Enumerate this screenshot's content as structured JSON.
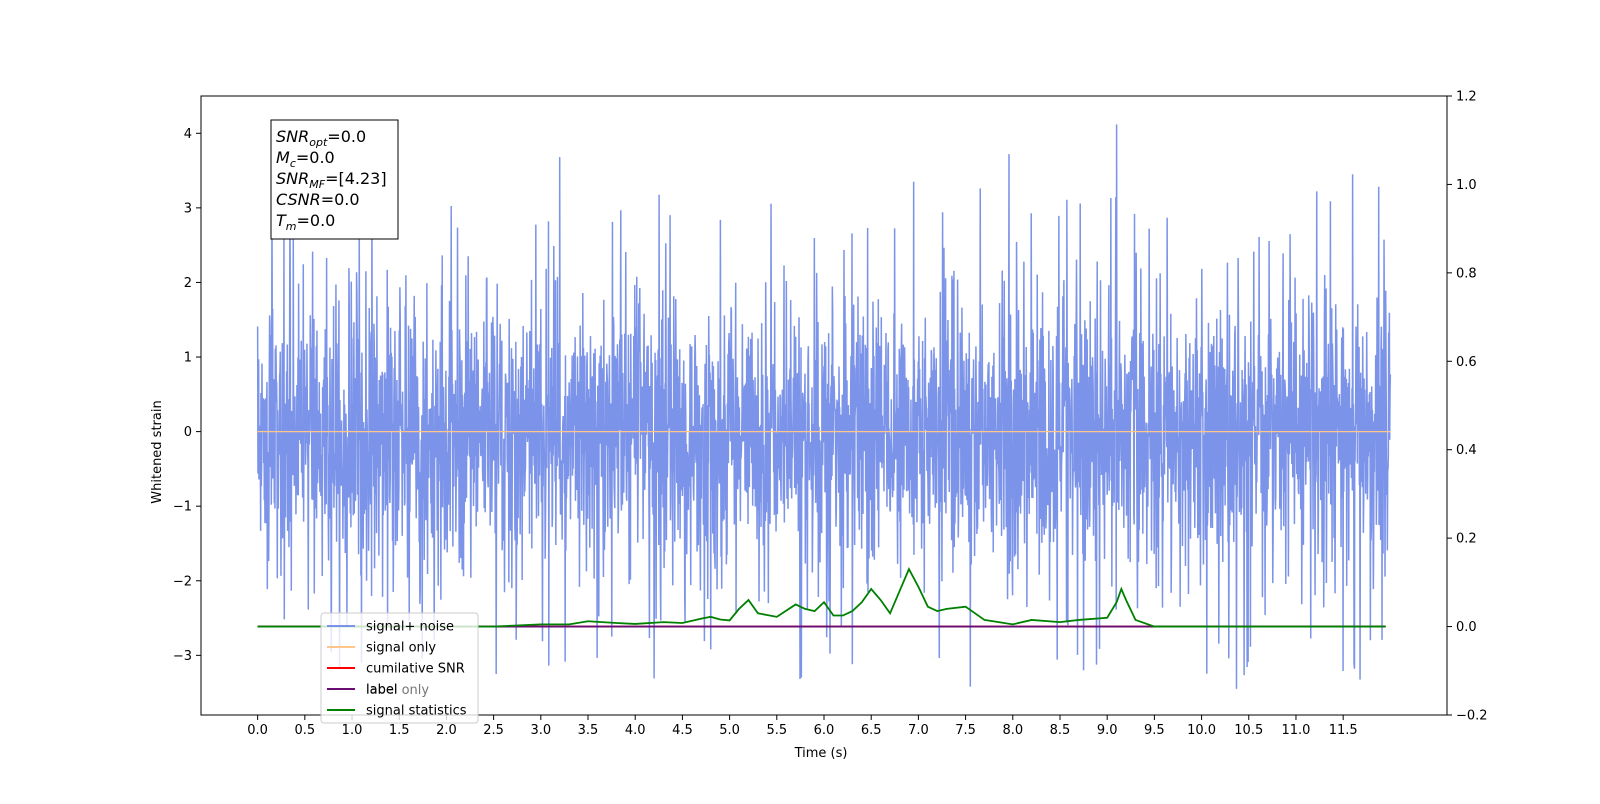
{
  "chart_data": {
    "type": "line",
    "xlabel": "Time (s)",
    "ylabel": "Whitened strain",
    "xlim": [
      -0.6,
      12.6
    ],
    "ylim": [
      -3.8,
      4.5
    ],
    "y2lim": [
      -0.2,
      1.2
    ],
    "x_ticks": [
      0.0,
      0.5,
      1.0,
      1.5,
      2.0,
      2.5,
      3.0,
      3.5,
      4.0,
      4.5,
      5.0,
      5.5,
      6.0,
      6.5,
      7.0,
      7.5,
      8.0,
      8.5,
      9.0,
      9.5,
      10.0,
      10.5,
      11.0,
      11.5
    ],
    "x_tick_labels": [
      "0.0",
      "0.5",
      "1.0",
      "1.5",
      "2.0",
      "2.5",
      "3.0",
      "3.5",
      "4.0",
      "4.5",
      "5.0",
      "5.5",
      "6.0",
      "6.5",
      "7.0",
      "7.5",
      "8.0",
      "8.5",
      "9.0",
      "9.5",
      "10.0",
      "10.5",
      "11.0",
      "11.5"
    ],
    "y_ticks": [
      -3,
      -2,
      -1,
      0,
      1,
      2,
      3,
      4
    ],
    "y_tick_labels": [
      "−3",
      "−2",
      "−1",
      "0",
      "1",
      "2",
      "3",
      "4"
    ],
    "y2_ticks": [
      -0.2,
      0.0,
      0.2,
      0.4,
      0.6,
      0.8,
      1.0,
      1.2
    ],
    "y2_tick_labels": [
      "−0.2",
      "0.0",
      "0.2",
      "0.4",
      "0.6",
      "0.8",
      "1.0",
      "1.2"
    ],
    "grid": false,
    "legend_position": "lower-left",
    "series": [
      {
        "name": "signal+ noise",
        "color": "#7b93e8",
        "axis": "left",
        "x_range": [
          0.0,
          12.0
        ],
        "envelope": {
          "typical_abs": 1.2,
          "common_peak_max": 2.6,
          "min": -3.45,
          "max": 4.12
        }
      },
      {
        "name": "signal only",
        "color": "#ffc58a",
        "axis": "left",
        "x": [
          0.0,
          12.0
        ],
        "y": [
          0.0,
          0.0
        ]
      },
      {
        "name": "cumilative SNR",
        "color": "#ff0000",
        "axis": "right",
        "x": [
          0.0,
          11.95
        ],
        "y": [
          0.0,
          0.0
        ]
      },
      {
        "name": "label",
        "color": "#6a0d72",
        "axis": "right",
        "x": [
          0.0,
          11.95
        ],
        "y": [
          0.0,
          0.0
        ]
      },
      {
        "name": "signal statistics",
        "color": "#008000",
        "axis": "right",
        "x": [
          0.0,
          1.0,
          2.0,
          2.5,
          3.0,
          3.3,
          3.5,
          3.8,
          4.0,
          4.3,
          4.5,
          4.7,
          4.8,
          4.9,
          5.0,
          5.1,
          5.2,
          5.3,
          5.5,
          5.7,
          5.8,
          5.9,
          6.0,
          6.1,
          6.2,
          6.3,
          6.4,
          6.5,
          6.6,
          6.7,
          6.8,
          6.9,
          7.0,
          7.1,
          7.2,
          7.3,
          7.5,
          7.7,
          8.0,
          8.2,
          8.5,
          8.7,
          9.0,
          9.1,
          9.15,
          9.2,
          9.3,
          9.5,
          10.0,
          11.0,
          11.95
        ],
        "y": [
          0.0,
          0.0,
          0.0,
          0.0,
          0.005,
          0.005,
          0.012,
          0.008,
          0.006,
          0.01,
          0.008,
          0.018,
          0.022,
          0.016,
          0.014,
          0.04,
          0.06,
          0.03,
          0.022,
          0.05,
          0.04,
          0.035,
          0.055,
          0.025,
          0.025,
          0.035,
          0.055,
          0.085,
          0.06,
          0.03,
          0.08,
          0.13,
          0.09,
          0.045,
          0.035,
          0.04,
          0.045,
          0.015,
          0.005,
          0.015,
          0.01,
          0.015,
          0.02,
          0.055,
          0.085,
          0.06,
          0.015,
          0.0,
          0.0,
          0.0,
          0.0
        ]
      }
    ],
    "annotation": {
      "lines": [
        {
          "base": "SNR",
          "sub": "opt",
          "value": "=0.0"
        },
        {
          "base": "M",
          "sub": "c",
          "value": "=0.0"
        },
        {
          "base": "SNR",
          "sub": "MF",
          "value": "=[4.23]"
        },
        {
          "base": "CSNR",
          "sub": "",
          "value": "=0.0"
        },
        {
          "base": "T",
          "sub": "m",
          "value": "=0.0"
        }
      ]
    },
    "legend_overlap_text": "label only"
  }
}
